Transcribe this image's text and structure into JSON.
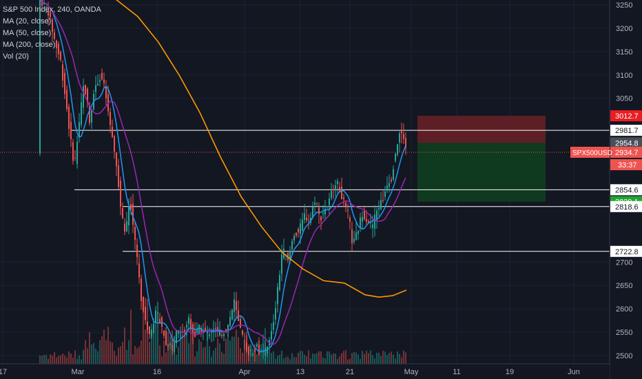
{
  "header": {
    "title": "S&P 500 Index, 240, OANDA",
    "indicators": [
      "MA (20, close)",
      "MA (50, close)",
      "MA (200, close)",
      "Vol (20)"
    ]
  },
  "colors": {
    "background": "#131722",
    "up": "#26a69a",
    "down": "#ef5350",
    "ma20": "#2196f3",
    "ma50": "#9c27b0",
    "ma200": "#ff9800",
    "hline": "#ffffff",
    "stop_zone": "#5d1f25",
    "target_zone": "#0f3a1f"
  },
  "chart_data": {
    "type": "candlestick",
    "symbol": "SPX500USD",
    "y_axis": {
      "min": 2490,
      "max": 3270,
      "ticks": [
        3250,
        3200,
        3150,
        3100,
        3050,
        2700,
        2650,
        2600,
        2550,
        2500
      ]
    },
    "x_axis": {
      "labels": [
        "17",
        "Mar",
        "16",
        "Apr",
        "13",
        "21",
        "May",
        "11",
        "19",
        "Jun"
      ]
    },
    "price_labels": [
      {
        "value": 3012.7,
        "text": "3012.7",
        "kind": "stop"
      },
      {
        "value": 2981.7,
        "text": "2981.7",
        "kind": "level"
      },
      {
        "value": 2954.8,
        "text": "2954.8",
        "kind": "entry"
      },
      {
        "value": 2934.7,
        "text": "2934.7",
        "kind": "current"
      },
      {
        "value": 2854.6,
        "text": "2854.6",
        "kind": "level"
      },
      {
        "value": 2829.1,
        "text": "2829.1",
        "kind": "target"
      },
      {
        "value": 2818.6,
        "text": "2818.6",
        "kind": "level"
      },
      {
        "value": 2722.8,
        "text": "2722.8",
        "kind": "level"
      }
    ],
    "symbol_label": "SPX500USD",
    "countdown": "33:37",
    "horizontal_levels": [
      2981.7,
      2854.6,
      2818.6,
      2722.8
    ],
    "current_price": 2934.7,
    "position": {
      "entry": 2954.8,
      "stop": 3012.7,
      "target": 2829.1
    }
  }
}
